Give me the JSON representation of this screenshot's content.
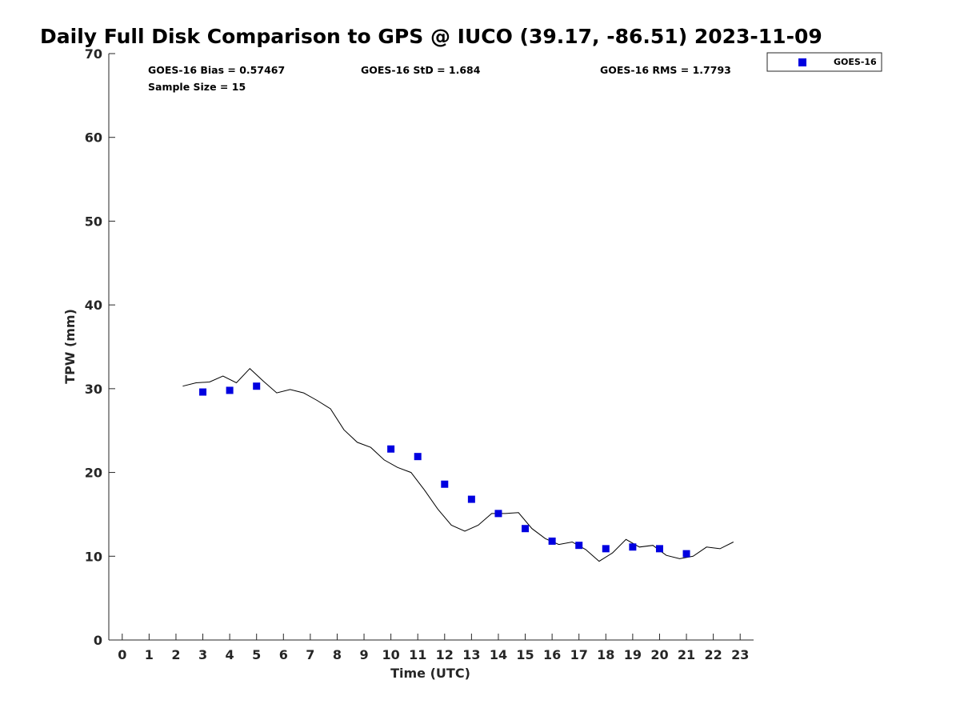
{
  "chart_data": {
    "type": "scatter",
    "title": "Daily Full Disk Comparison to GPS @ IUCO (39.17, -86.51) 2023-11-09",
    "xlabel": "Time (UTC)",
    "ylabel": "TPW (mm)",
    "xlim": [
      -0.5,
      23.5
    ],
    "ylim": [
      0,
      70
    ],
    "x_ticks": [
      0,
      1,
      2,
      3,
      4,
      5,
      6,
      7,
      8,
      9,
      10,
      11,
      12,
      13,
      14,
      15,
      16,
      17,
      18,
      19,
      20,
      21,
      22,
      23
    ],
    "y_ticks": [
      0,
      10,
      20,
      30,
      40,
      50,
      60,
      70
    ],
    "grid": false,
    "legend_position": "top-right, outside plot",
    "stats": {
      "bias": "GOES-16 Bias = 0.57467",
      "std": "GOES-16 StD = 1.684",
      "rms": "GOES-16 RMS = 1.7793",
      "sample": "Sample Size = 15"
    },
    "series": [
      {
        "name": "GOES-16",
        "type": "scatter",
        "marker": "square",
        "color": "#0000e0",
        "x": [
          3,
          4,
          5,
          10,
          11,
          12,
          13,
          14,
          15,
          16,
          17,
          18,
          19,
          20,
          21
        ],
        "y": [
          29.6,
          29.8,
          30.3,
          22.8,
          21.9,
          18.6,
          16.8,
          15.1,
          13.3,
          11.8,
          11.3,
          10.9,
          11.1,
          10.9,
          10.3
        ]
      },
      {
        "type": "line",
        "color": "#000000",
        "x": [
          2.25,
          2.75,
          3.25,
          3.75,
          4.25,
          4.75,
          5.25,
          5.75,
          6.25,
          6.75,
          7.25,
          7.75,
          8.25,
          8.75,
          9.25,
          9.75,
          10.25,
          10.75,
          11.25,
          11.75,
          12.25,
          12.75,
          13.25,
          13.75,
          14.25,
          14.75,
          15.25,
          15.75,
          16.25,
          16.75,
          17.25,
          17.75,
          18.25,
          18.75,
          19.25,
          19.75,
          20.25,
          20.75,
          21.25,
          21.75,
          22.25,
          22.75
        ],
        "y": [
          30.3,
          30.7,
          30.8,
          31.5,
          30.7,
          32.4,
          30.9,
          29.5,
          29.9,
          29.5,
          28.6,
          27.6,
          25.1,
          23.6,
          23.0,
          21.5,
          20.6,
          20.0,
          17.9,
          15.6,
          13.7,
          13.0,
          13.7,
          15.1,
          15.1,
          15.2,
          13.3,
          12.1,
          11.4,
          11.7,
          10.8,
          9.4,
          10.4,
          12.0,
          11.1,
          11.3,
          10.1,
          9.7,
          10.0,
          11.1,
          10.9,
          11.7
        ]
      }
    ]
  }
}
